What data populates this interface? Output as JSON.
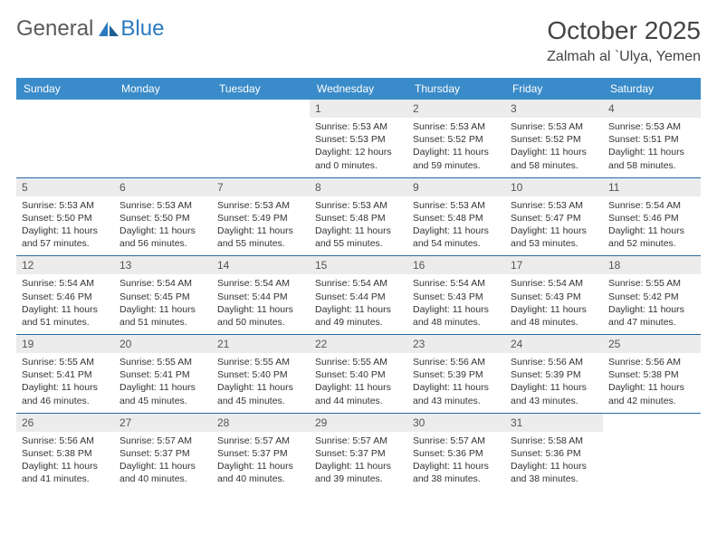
{
  "brand": {
    "part1": "General",
    "part2": "Blue"
  },
  "title": "October 2025",
  "location": "Zalmah al `Ulya, Yemen",
  "colors": {
    "header_bg": "#3a8bc9",
    "header_text": "#ffffff",
    "row_divider": "#2b6aa0",
    "daynum_bg": "#ececec",
    "text": "#333333",
    "brand_gray": "#5a5a5a",
    "brand_blue": "#2b7bbf"
  },
  "day_headers": [
    "Sunday",
    "Monday",
    "Tuesday",
    "Wednesday",
    "Thursday",
    "Friday",
    "Saturday"
  ],
  "weeks": [
    [
      {
        "empty": true
      },
      {
        "empty": true
      },
      {
        "empty": true
      },
      {
        "num": "1",
        "sunrise": "5:53 AM",
        "sunset": "5:53 PM",
        "daylight": "12 hours and 0 minutes."
      },
      {
        "num": "2",
        "sunrise": "5:53 AM",
        "sunset": "5:52 PM",
        "daylight": "11 hours and 59 minutes."
      },
      {
        "num": "3",
        "sunrise": "5:53 AM",
        "sunset": "5:52 PM",
        "daylight": "11 hours and 58 minutes."
      },
      {
        "num": "4",
        "sunrise": "5:53 AM",
        "sunset": "5:51 PM",
        "daylight": "11 hours and 58 minutes."
      }
    ],
    [
      {
        "num": "5",
        "sunrise": "5:53 AM",
        "sunset": "5:50 PM",
        "daylight": "11 hours and 57 minutes."
      },
      {
        "num": "6",
        "sunrise": "5:53 AM",
        "sunset": "5:50 PM",
        "daylight": "11 hours and 56 minutes."
      },
      {
        "num": "7",
        "sunrise": "5:53 AM",
        "sunset": "5:49 PM",
        "daylight": "11 hours and 55 minutes."
      },
      {
        "num": "8",
        "sunrise": "5:53 AM",
        "sunset": "5:48 PM",
        "daylight": "11 hours and 55 minutes."
      },
      {
        "num": "9",
        "sunrise": "5:53 AM",
        "sunset": "5:48 PM",
        "daylight": "11 hours and 54 minutes."
      },
      {
        "num": "10",
        "sunrise": "5:53 AM",
        "sunset": "5:47 PM",
        "daylight": "11 hours and 53 minutes."
      },
      {
        "num": "11",
        "sunrise": "5:54 AM",
        "sunset": "5:46 PM",
        "daylight": "11 hours and 52 minutes."
      }
    ],
    [
      {
        "num": "12",
        "sunrise": "5:54 AM",
        "sunset": "5:46 PM",
        "daylight": "11 hours and 51 minutes."
      },
      {
        "num": "13",
        "sunrise": "5:54 AM",
        "sunset": "5:45 PM",
        "daylight": "11 hours and 51 minutes."
      },
      {
        "num": "14",
        "sunrise": "5:54 AM",
        "sunset": "5:44 PM",
        "daylight": "11 hours and 50 minutes."
      },
      {
        "num": "15",
        "sunrise": "5:54 AM",
        "sunset": "5:44 PM",
        "daylight": "11 hours and 49 minutes."
      },
      {
        "num": "16",
        "sunrise": "5:54 AM",
        "sunset": "5:43 PM",
        "daylight": "11 hours and 48 minutes."
      },
      {
        "num": "17",
        "sunrise": "5:54 AM",
        "sunset": "5:43 PM",
        "daylight": "11 hours and 48 minutes."
      },
      {
        "num": "18",
        "sunrise": "5:55 AM",
        "sunset": "5:42 PM",
        "daylight": "11 hours and 47 minutes."
      }
    ],
    [
      {
        "num": "19",
        "sunrise": "5:55 AM",
        "sunset": "5:41 PM",
        "daylight": "11 hours and 46 minutes."
      },
      {
        "num": "20",
        "sunrise": "5:55 AM",
        "sunset": "5:41 PM",
        "daylight": "11 hours and 45 minutes."
      },
      {
        "num": "21",
        "sunrise": "5:55 AM",
        "sunset": "5:40 PM",
        "daylight": "11 hours and 45 minutes."
      },
      {
        "num": "22",
        "sunrise": "5:55 AM",
        "sunset": "5:40 PM",
        "daylight": "11 hours and 44 minutes."
      },
      {
        "num": "23",
        "sunrise": "5:56 AM",
        "sunset": "5:39 PM",
        "daylight": "11 hours and 43 minutes."
      },
      {
        "num": "24",
        "sunrise": "5:56 AM",
        "sunset": "5:39 PM",
        "daylight": "11 hours and 43 minutes."
      },
      {
        "num": "25",
        "sunrise": "5:56 AM",
        "sunset": "5:38 PM",
        "daylight": "11 hours and 42 minutes."
      }
    ],
    [
      {
        "num": "26",
        "sunrise": "5:56 AM",
        "sunset": "5:38 PM",
        "daylight": "11 hours and 41 minutes."
      },
      {
        "num": "27",
        "sunrise": "5:57 AM",
        "sunset": "5:37 PM",
        "daylight": "11 hours and 40 minutes."
      },
      {
        "num": "28",
        "sunrise": "5:57 AM",
        "sunset": "5:37 PM",
        "daylight": "11 hours and 40 minutes."
      },
      {
        "num": "29",
        "sunrise": "5:57 AM",
        "sunset": "5:37 PM",
        "daylight": "11 hours and 39 minutes."
      },
      {
        "num": "30",
        "sunrise": "5:57 AM",
        "sunset": "5:36 PM",
        "daylight": "11 hours and 38 minutes."
      },
      {
        "num": "31",
        "sunrise": "5:58 AM",
        "sunset": "5:36 PM",
        "daylight": "11 hours and 38 minutes."
      },
      {
        "empty": true
      }
    ]
  ],
  "labels": {
    "sunrise": "Sunrise:",
    "sunset": "Sunset:",
    "daylight": "Daylight:"
  }
}
